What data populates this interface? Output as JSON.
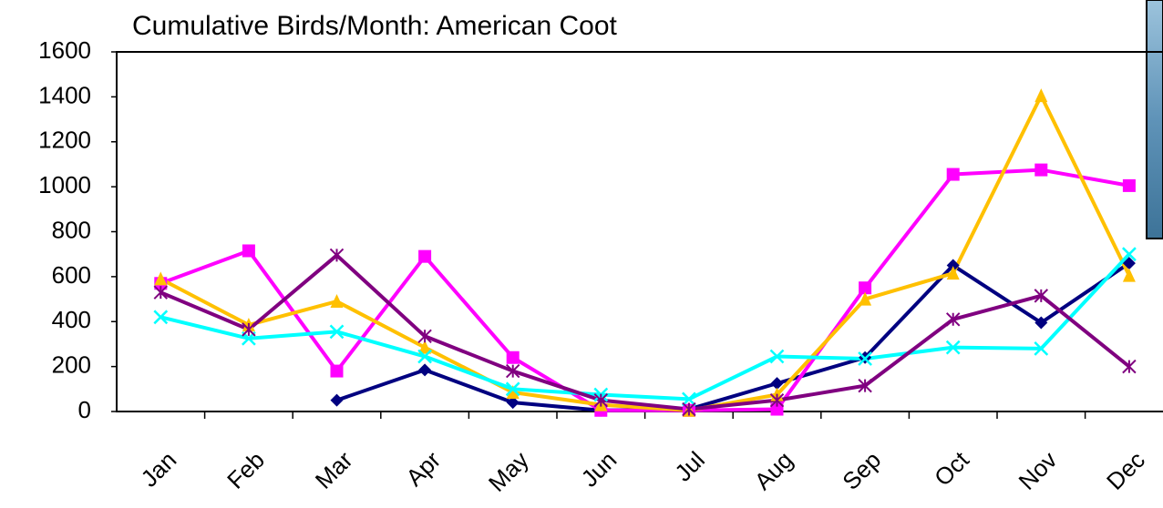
{
  "chart_data": {
    "type": "line",
    "title": "Cumulative Birds/Month: American Coot",
    "categories": [
      "Jan",
      "Feb",
      "Mar",
      "Apr",
      "May",
      "Jun",
      "Jul",
      "Aug",
      "Sep",
      "Oct",
      "Nov",
      "Dec"
    ],
    "series": [
      {
        "color": "#000080",
        "marker": "diamond",
        "values": [
          null,
          null,
          50,
          185,
          40,
          5,
          10,
          125,
          240,
          650,
          395,
          660
        ]
      },
      {
        "color": "#ff00ff",
        "marker": "square",
        "values": [
          570,
          715,
          180,
          690,
          240,
          5,
          5,
          10,
          550,
          1055,
          1075,
          1005
        ]
      },
      {
        "color": "#ffc000",
        "marker": "triangle",
        "values": [
          590,
          385,
          490,
          285,
          85,
          30,
          5,
          75,
          500,
          615,
          1405,
          605
        ]
      },
      {
        "color": "#00ffff",
        "marker": "cross",
        "values": [
          420,
          325,
          355,
          245,
          100,
          75,
          55,
          245,
          235,
          285,
          280,
          700
        ]
      },
      {
        "color": "#800080",
        "marker": "star",
        "values": [
          530,
          365,
          695,
          335,
          180,
          50,
          10,
          50,
          115,
          410,
          515,
          200
        ]
      }
    ],
    "ylim": [
      0,
      1600
    ],
    "yticks": [
      0,
      200,
      400,
      600,
      800,
      1000,
      1200,
      1400,
      1600
    ],
    "grid": false
  }
}
